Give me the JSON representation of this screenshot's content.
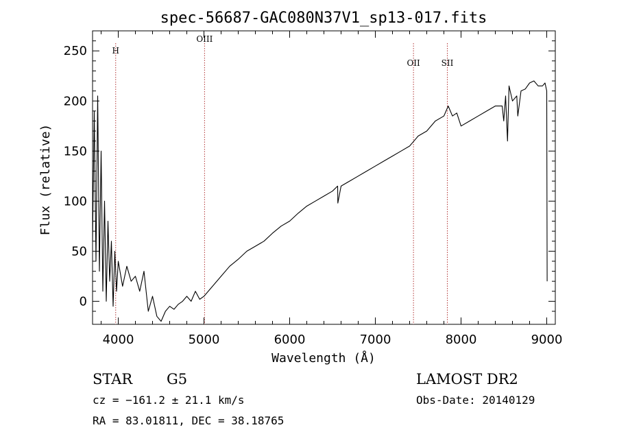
{
  "chart_data": {
    "type": "line",
    "title": "spec-56687-GAC080N37V1_sp13-017.fits",
    "xlabel": "Wavelength (Å)",
    "ylabel": "Flux (relative)",
    "xlim": [
      3700,
      9100
    ],
    "ylim": [
      -23,
      270
    ],
    "x_ticks": [
      "4000",
      "5000",
      "6000",
      "7000",
      "8000",
      "9000"
    ],
    "y_ticks": [
      "0",
      "50",
      "100",
      "150",
      "200",
      "250"
    ],
    "grid": false,
    "series": [
      {
        "x": [
          3700,
          3720,
          3740,
          3760,
          3780,
          3800,
          3820,
          3840,
          3860,
          3880,
          3900,
          3920,
          3940,
          3960,
          3980,
          4000,
          4050,
          4100,
          4150,
          4200,
          4250,
          4300,
          4350,
          4400,
          4450,
          4500,
          4550,
          4600,
          4650,
          4700,
          4750,
          4800,
          4850,
          4900,
          4950,
          5000,
          5100,
          5200,
          5300,
          5400,
          5500,
          5600,
          5700,
          5800,
          5900,
          6000,
          6100,
          6200,
          6300,
          6400,
          6500,
          6560,
          6562,
          6600,
          6700,
          6800,
          6900,
          7000,
          7100,
          7200,
          7300,
          7400,
          7450,
          7500,
          7600,
          7700,
          7800,
          7850,
          7900,
          7950,
          8000,
          8100,
          8200,
          8300,
          8400,
          8480,
          8498,
          8520,
          8542,
          8560,
          8600,
          8650,
          8662,
          8700,
          8750,
          8800,
          8850,
          8900,
          8950,
          8980,
          9000,
          9005
        ],
        "y": [
          60,
          190,
          40,
          205,
          30,
          150,
          10,
          100,
          0,
          80,
          20,
          60,
          -5,
          50,
          10,
          40,
          15,
          35,
          20,
          25,
          10,
          30,
          -10,
          5,
          -15,
          -20,
          -10,
          -5,
          -8,
          -3,
          0,
          5,
          0,
          10,
          2,
          5,
          15,
          25,
          35,
          42,
          50,
          55,
          60,
          68,
          75,
          80,
          88,
          95,
          100,
          105,
          110,
          115,
          98,
          115,
          120,
          125,
          130,
          135,
          140,
          145,
          150,
          155,
          160,
          165,
          170,
          180,
          185,
          195,
          185,
          188,
          175,
          180,
          185,
          190,
          195,
          195,
          180,
          205,
          160,
          215,
          200,
          205,
          185,
          210,
          212,
          218,
          220,
          215,
          215,
          218,
          210,
          20
        ]
      }
    ],
    "lines": [
      {
        "label": "H",
        "x": 3970
      },
      {
        "label": "OIII",
        "x": 5007
      },
      {
        "label": "OII",
        "x": 7445
      },
      {
        "label": "SII",
        "x": 7840
      }
    ]
  },
  "info": {
    "class": "STAR",
    "subclass": "G5",
    "survey": "LAMOST DR2",
    "cz": "cz = −161.2 ± 21.1 km/s",
    "obs_date": "Obs-Date: 20140129",
    "coords": "RA =  83.01811, DEC =  38.18765"
  }
}
